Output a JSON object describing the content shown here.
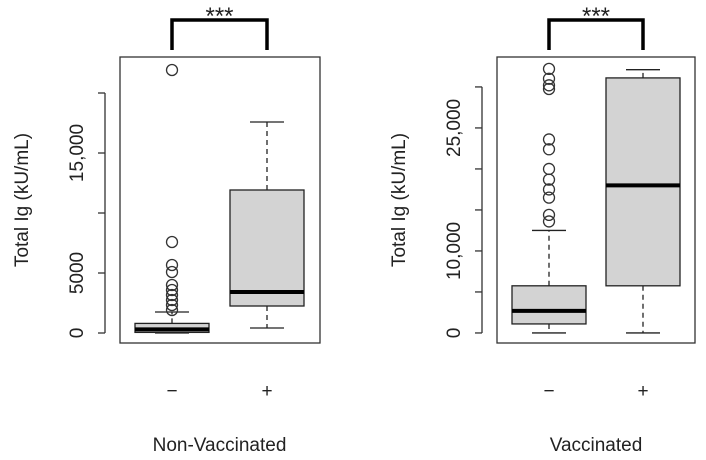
{
  "chart_data": [
    {
      "type": "box",
      "x_label": "Non-Vaccinated",
      "y_label": "Total Ig (kU/mL)",
      "annotation": "***",
      "categories": [
        "−",
        "+"
      ],
      "color": "#d3d3d3",
      "ylim": [
        -833,
        23000
      ],
      "yticks": [
        0,
        5000,
        {
          "value": 10000,
          "label": null
        },
        {
          "value": 15000,
          "label": "15,000"
        },
        {
          "value": 20000,
          "label": null
        }
      ],
      "boxes": [
        {
          "whisker_low": 0,
          "q1": 50,
          "median": 300,
          "q3": 800,
          "whisker_high": 1750,
          "outliers": [
            1917,
            2333,
            2750,
            3167,
            3583,
            4000,
            5083,
            5667,
            7583,
            21917
          ]
        },
        {
          "whisker_low": 417,
          "q1": 2250,
          "median": 3417,
          "q3": 11917,
          "whisker_high": 17583,
          "outliers": []
        }
      ]
    },
    {
      "type": "box",
      "x_label": "Vaccinated",
      "y_label": "Total Ig (kU/mL)",
      "annotation": "***",
      "categories": [
        "−",
        "+"
      ],
      "color": "#d3d3d3",
      "ylim": [
        -1224,
        33650
      ],
      "yticks": [
        0,
        {
          "value": 5000,
          "label": null
        },
        {
          "value": 10000,
          "label": "10,000"
        },
        {
          "value": 15000,
          "label": null
        },
        {
          "value": 20000,
          "label": null
        },
        {
          "value": 25000,
          "label": "25,000"
        },
        {
          "value": 30000,
          "label": null
        }
      ],
      "boxes": [
        {
          "whisker_low": 0,
          "q1": 1100,
          "median": 2700,
          "q3": 5750,
          "whisker_high": 12500,
          "outliers": [
            13600,
            14400,
            16500,
            17500,
            18700,
            20000,
            22400,
            23600,
            29750,
            30200,
            31000,
            32200
          ]
        },
        {
          "whisker_low": 0,
          "q1": 5750,
          "median": 18000,
          "q3": 31100,
          "whisker_high": 32100,
          "outliers": []
        }
      ]
    }
  ]
}
